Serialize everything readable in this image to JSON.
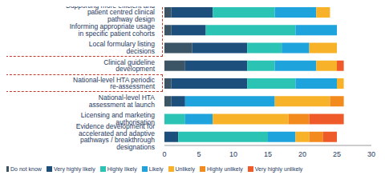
{
  "chart_data": {
    "type": "bar",
    "orientation": "horizontal",
    "stacked": true,
    "grid": false,
    "legend": "bottom",
    "categories": [
      "Supporting more efficient and patient centred clinical pathway design",
      "Informing appropriate usage in specific patient cohorts",
      "Local formulary listing decisions",
      "Clinical guideline development",
      "National-level HTA periodic re-assessment",
      "National-level HTA assessment at launch",
      "Licensing and marketing authorisation",
      "Evidence development for accelerated and adaptive pathways / breakthrough designations"
    ],
    "series": [
      {
        "name": "Do not know",
        "color": "#3b5566",
        "values": [
          1,
          1,
          4,
          3,
          1,
          1,
          0,
          0
        ]
      },
      {
        "name": "Very highly likely",
        "color": "#1d4f7c",
        "values": [
          6,
          5,
          8,
          9,
          11,
          2,
          0,
          2
        ]
      },
      {
        "name": "Highly likely",
        "color": "#2bc4b4",
        "values": [
          9,
          13,
          5,
          4,
          7,
          0,
          3,
          13
        ]
      },
      {
        "name": "Likely",
        "color": "#1fa3dc",
        "values": [
          6,
          6,
          4,
          6,
          6,
          13,
          4,
          4
        ]
      },
      {
        "name": "Unlikely",
        "color": "#f7b22a",
        "values": [
          2,
          0,
          4,
          3,
          1,
          8,
          11,
          2
        ]
      },
      {
        "name": "Highly unlikely",
        "color": "#f38a1e",
        "values": [
          0,
          0,
          0,
          0,
          0,
          2,
          3,
          2
        ]
      },
      {
        "name": "Very highly unlikely",
        "color": "#ef5a2a",
        "values": [
          0,
          0,
          0,
          1,
          0,
          0,
          5,
          2
        ]
      }
    ],
    "xlim": [
      0,
      30
    ],
    "xticks": [
      0,
      5,
      10,
      15,
      20,
      25,
      30
    ]
  }
}
